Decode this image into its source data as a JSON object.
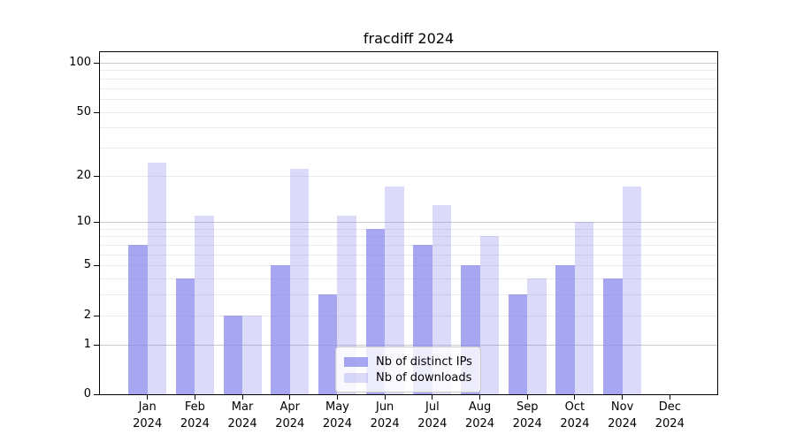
{
  "title": "fracdiff 2024",
  "chart_data": {
    "type": "bar",
    "title": "fracdiff 2024",
    "categories": [
      "Jan",
      "Feb",
      "Mar",
      "Apr",
      "May",
      "Jun",
      "Jul",
      "Aug",
      "Sep",
      "Oct",
      "Nov",
      "Dec"
    ],
    "year": "2024",
    "series": [
      {
        "name": "Nb of distinct IPs",
        "fill": "rgba(136,136,236,0.75)",
        "values": [
          7,
          4,
          2,
          5,
          3,
          9,
          7,
          5,
          3,
          5,
          4,
          0
        ]
      },
      {
        "name": "Nb of downloads",
        "fill": "rgba(136,136,236,0.30)",
        "values": [
          24,
          11,
          2,
          22,
          11,
          17,
          13,
          8,
          4,
          10,
          17,
          0
        ]
      }
    ],
    "xlabel": "",
    "ylabel": "",
    "yscale": "log1p",
    "yticks": [
      0,
      1,
      2,
      5,
      10,
      20,
      50,
      100
    ],
    "ylim": [
      0,
      116
    ],
    "grid": {
      "on": true,
      "major_lines": [
        1,
        10,
        100
      ],
      "minor_lines": [
        2,
        3,
        4,
        5,
        6,
        7,
        8,
        9,
        20,
        30,
        40,
        50,
        60,
        70,
        80,
        90
      ]
    },
    "legend_position": "lower center"
  },
  "colors": {
    "bar_base": "#8888ec",
    "grid_major": "#c9c9c9",
    "grid_minor": "#ebebeb",
    "spine": "#000000",
    "legend_border": "#cccccc"
  }
}
